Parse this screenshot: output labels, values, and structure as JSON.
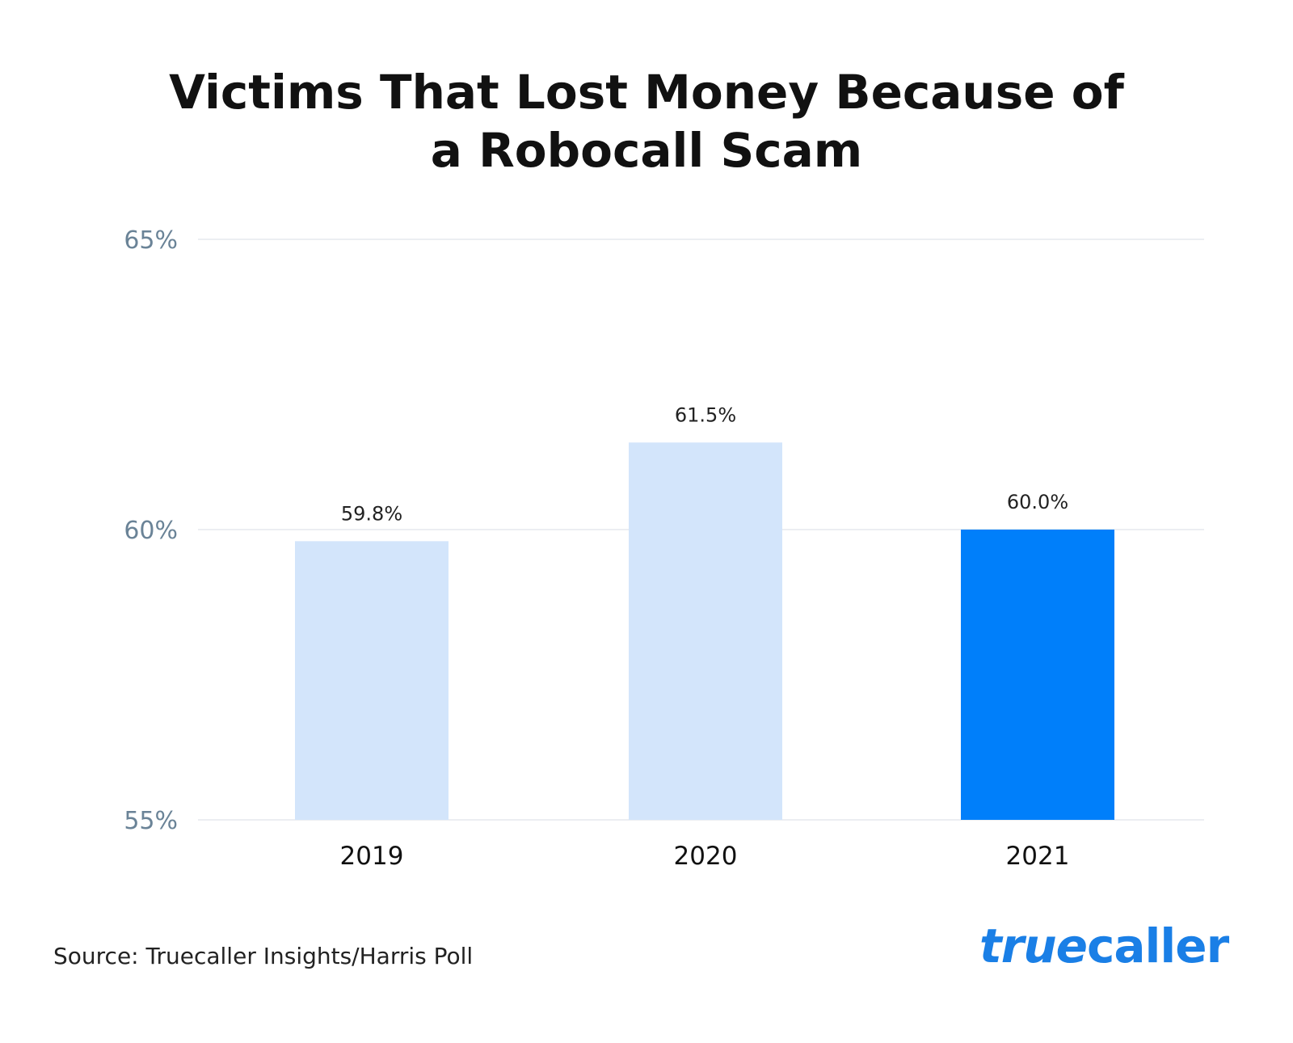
{
  "chart_data": {
    "type": "bar",
    "title_line1": "Victims That Lost Money Because of",
    "title_line2": "a Robocall Scam",
    "categories": [
      "2019",
      "2020",
      "2021"
    ],
    "values": [
      59.8,
      61.5,
      60.0
    ],
    "value_labels": [
      "59.8%",
      "61.5%",
      "60.0%"
    ],
    "ylim": [
      55,
      65
    ],
    "y_ticks": [
      55,
      60,
      65
    ],
    "y_tick_labels": [
      "55%",
      "60%",
      "65%"
    ],
    "grid": true,
    "bar_colors": [
      "#d3e5fb",
      "#d3e5fb",
      "#007ffa"
    ],
    "grid_color": "#e6e9ee",
    "tick_label_color": "#6a8397"
  },
  "source": "Source: Truecaller Insights/Harris Poll",
  "logo": {
    "part1": "true",
    "part2": "caller",
    "color": "#1a7fe6"
  }
}
